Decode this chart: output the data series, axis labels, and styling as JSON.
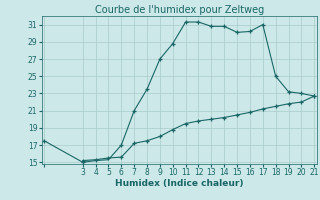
{
  "title": "Courbe de l'humidex pour Zeltweg",
  "xlabel": "Humidex (Indice chaleur)",
  "background_color": "#cce8e8",
  "line_color": "#1a6666",
  "grid_color": "#aacccc",
  "xmin": 0,
  "xmax": 21,
  "ymin": 15,
  "ymax": 32,
  "xticks": [
    0,
    3,
    4,
    5,
    6,
    7,
    8,
    9,
    10,
    11,
    12,
    13,
    14,
    15,
    16,
    17,
    18,
    19,
    20,
    21
  ],
  "yticks": [
    15,
    17,
    19,
    21,
    23,
    25,
    27,
    29,
    31
  ],
  "upper_x": [
    0,
    3,
    4,
    5,
    6,
    7,
    8,
    9,
    10,
    11,
    12,
    13,
    14,
    15,
    16,
    17,
    18,
    19,
    20,
    21
  ],
  "upper_y": [
    17.5,
    15.0,
    15.2,
    15.3,
    17.0,
    21.0,
    23.5,
    27.0,
    28.8,
    31.3,
    31.3,
    30.8,
    30.8,
    30.1,
    30.2,
    31.0,
    25.0,
    23.2,
    23.0,
    22.7
  ],
  "lower_x": [
    3,
    4,
    5,
    6,
    7,
    8,
    9,
    10,
    11,
    12,
    13,
    14,
    15,
    16,
    17,
    18,
    19,
    20,
    21
  ],
  "lower_y": [
    15.2,
    15.3,
    15.5,
    15.6,
    17.2,
    17.5,
    18.0,
    18.8,
    19.5,
    19.8,
    20.0,
    20.2,
    20.5,
    20.8,
    21.2,
    21.5,
    21.8,
    22.0,
    22.7
  ],
  "marker_upper_x": [
    0,
    3,
    6,
    7,
    8,
    9,
    10,
    11,
    12,
    13,
    14,
    15,
    16,
    17,
    18,
    19,
    20,
    21
  ],
  "marker_upper_y": [
    17.5,
    15.0,
    17.0,
    21.0,
    23.5,
    27.0,
    28.8,
    31.3,
    31.3,
    30.8,
    30.8,
    30.1,
    30.2,
    31.0,
    25.0,
    23.2,
    23.0,
    22.7
  ],
  "marker_lower_x": [
    3,
    4,
    5,
    6,
    7,
    8,
    9,
    10,
    11,
    12,
    13,
    14,
    15,
    16,
    17,
    18,
    19,
    20,
    21
  ],
  "marker_lower_y": [
    15.2,
    15.3,
    15.5,
    15.6,
    17.2,
    17.5,
    18.0,
    18.8,
    19.5,
    19.8,
    20.0,
    20.2,
    20.5,
    20.8,
    21.2,
    21.5,
    21.8,
    22.0,
    22.7
  ],
  "tick_fontsize": 5.5,
  "xlabel_fontsize": 6.5,
  "title_fontsize": 7.0
}
